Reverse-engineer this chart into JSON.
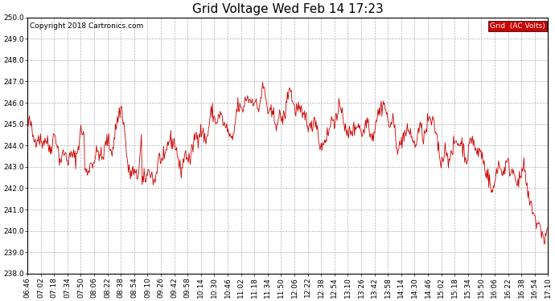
{
  "title": "Grid Voltage Wed Feb 14 17:23",
  "copyright": "Copyright 2018 Cartronics.com",
  "legend_label": "Grid  (AC Volts)",
  "line_color": "#cc0000",
  "legend_bg": "#cc0000",
  "legend_fg": "#ffffff",
  "background_color": "#ffffff",
  "grid_color": "#b0b0b0",
  "ylim": [
    238.0,
    250.0
  ],
  "yticks": [
    238.0,
    239.0,
    240.0,
    241.0,
    242.0,
    243.0,
    244.0,
    245.0,
    246.0,
    247.0,
    248.0,
    249.0,
    250.0
  ],
  "xtick_labels": [
    "06:46",
    "07:02",
    "07:18",
    "07:34",
    "07:50",
    "08:06",
    "08:22",
    "08:38",
    "08:54",
    "09:10",
    "09:26",
    "09:42",
    "09:58",
    "10:14",
    "10:30",
    "10:46",
    "11:02",
    "11:18",
    "11:34",
    "11:50",
    "12:06",
    "12:22",
    "12:38",
    "12:54",
    "13:10",
    "13:26",
    "13:42",
    "13:58",
    "14:14",
    "14:30",
    "14:46",
    "15:02",
    "15:18",
    "15:34",
    "15:50",
    "16:06",
    "16:22",
    "16:38",
    "16:54",
    "17:10"
  ],
  "seed": 42,
  "n_points": 800,
  "title_fontsize": 11,
  "tick_fontsize": 6.5,
  "copyright_fontsize": 6.5,
  "figsize": [
    6.9,
    3.75
  ],
  "dpi": 100
}
